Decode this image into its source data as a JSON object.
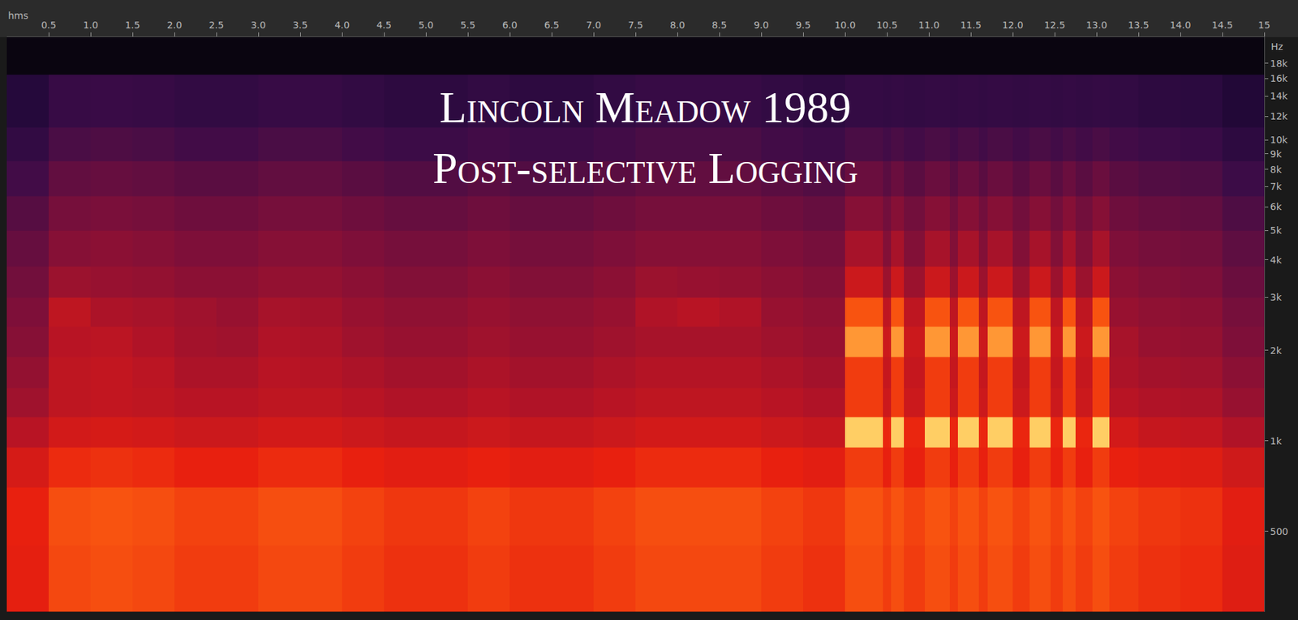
{
  "chart_data": {
    "type": "heatmap",
    "title": "Lincoln Meadow 1989",
    "subtitle": "Post-selective Logging",
    "x_label": "hms",
    "y_label": "Hz",
    "log": "y",
    "grid": false,
    "xlim": [
      0,
      15
    ],
    "ylim": [
      270,
      22000
    ],
    "zlim": [
      0,
      1
    ],
    "xticks": [
      0.5,
      {
        "value": 1,
        "label": "1.0"
      },
      1.5,
      {
        "value": 2,
        "label": "2.0"
      },
      2.5,
      {
        "value": 3,
        "label": "3.0"
      },
      3.5,
      {
        "value": 4,
        "label": "4.0"
      },
      4.5,
      {
        "value": 5,
        "label": "5.0"
      },
      5.5,
      {
        "value": 6,
        "label": "6.0"
      },
      6.5,
      {
        "value": 7,
        "label": "7.0"
      },
      7.5,
      {
        "value": 8,
        "label": "8.0"
      },
      8.5,
      {
        "value": 9,
        "label": "9.0"
      },
      9.5,
      {
        "value": 10,
        "label": "10.0"
      },
      10.5,
      {
        "value": 11,
        "label": "11.0"
      },
      11.5,
      {
        "value": 12,
        "label": "12.0"
      },
      12.5,
      {
        "value": 13,
        "label": "13.0"
      },
      13.5,
      {
        "value": 14,
        "label": "14.0"
      },
      14.5,
      15
    ],
    "yticks": [
      500,
      {
        "value": 1000,
        "label": "1k"
      },
      {
        "value": 2000,
        "label": "2k"
      },
      {
        "value": 3000,
        "label": "3k"
      },
      {
        "value": 4000,
        "label": "4k"
      },
      {
        "value": 5000,
        "label": "5k"
      },
      {
        "value": 6000,
        "label": "6k"
      },
      {
        "value": 7000,
        "label": "7k"
      },
      {
        "value": 8000,
        "label": "8k"
      },
      {
        "value": 9000,
        "label": "9k"
      },
      {
        "value": 10000,
        "label": "10k"
      },
      {
        "value": 12000,
        "label": "12k"
      },
      {
        "value": 14000,
        "label": "14k"
      },
      {
        "value": 16000,
        "label": "16k"
      },
      {
        "value": 18000,
        "label": "18k"
      }
    ],
    "x": [
      0,
      0.5,
      1,
      1.5,
      2,
      2.5,
      3,
      3.5,
      4,
      4.5,
      5,
      5.5,
      6,
      6.5,
      7,
      7.5,
      8,
      8.5,
      9,
      9.5,
      10,
      10.45,
      10.55,
      10.7,
      10.95,
      11.25,
      11.35,
      11.6,
      11.7,
      12,
      12.2,
      12.45,
      12.6,
      12.75,
      12.95,
      13.15,
      13.5,
      14,
      14.5,
      15
    ],
    "y": [
      270,
      450,
      700,
      950,
      1200,
      1500,
      1900,
      2400,
      3000,
      3800,
      5000,
      6500,
      8500,
      11000,
      16500
    ],
    "z": [
      [
        0.74,
        0.82,
        0.83,
        0.82,
        0.8,
        0.8,
        0.82,
        0.82,
        0.8,
        0.78,
        0.78,
        0.8,
        0.78,
        0.78,
        0.8,
        0.82,
        0.82,
        0.82,
        0.8,
        0.78,
        0.83,
        0.8,
        0.83,
        0.8,
        0.83,
        0.8,
        0.83,
        0.8,
        0.83,
        0.8,
        0.83,
        0.8,
        0.83,
        0.8,
        0.83,
        0.8,
        0.78,
        0.77,
        0.72
      ],
      [
        0.75,
        0.83,
        0.84,
        0.83,
        0.81,
        0.81,
        0.83,
        0.83,
        0.81,
        0.79,
        0.79,
        0.81,
        0.79,
        0.79,
        0.81,
        0.83,
        0.83,
        0.83,
        0.81,
        0.79,
        0.84,
        0.81,
        0.84,
        0.81,
        0.84,
        0.81,
        0.84,
        0.81,
        0.84,
        0.81,
        0.84,
        0.81,
        0.84,
        0.81,
        0.84,
        0.81,
        0.79,
        0.78,
        0.73
      ],
      [
        0.69,
        0.77,
        0.78,
        0.77,
        0.75,
        0.75,
        0.77,
        0.77,
        0.75,
        0.73,
        0.73,
        0.75,
        0.73,
        0.73,
        0.75,
        0.77,
        0.77,
        0.77,
        0.75,
        0.73,
        0.8,
        0.75,
        0.8,
        0.75,
        0.8,
        0.75,
        0.8,
        0.75,
        0.8,
        0.75,
        0.8,
        0.75,
        0.8,
        0.75,
        0.8,
        0.75,
        0.73,
        0.72,
        0.67
      ],
      [
        0.6,
        0.68,
        0.69,
        0.68,
        0.66,
        0.66,
        0.68,
        0.68,
        0.66,
        0.64,
        0.64,
        0.66,
        0.64,
        0.64,
        0.66,
        0.68,
        0.68,
        0.68,
        0.66,
        0.64,
        0.97,
        0.76,
        0.97,
        0.76,
        0.97,
        0.76,
        0.97,
        0.76,
        0.97,
        0.76,
        0.97,
        0.76,
        0.97,
        0.76,
        0.97,
        0.68,
        0.64,
        0.63,
        0.58
      ],
      [
        0.54,
        0.62,
        0.63,
        0.62,
        0.6,
        0.6,
        0.62,
        0.62,
        0.6,
        0.58,
        0.58,
        0.6,
        0.58,
        0.58,
        0.6,
        0.62,
        0.62,
        0.62,
        0.6,
        0.58,
        0.8,
        0.66,
        0.8,
        0.66,
        0.8,
        0.66,
        0.8,
        0.66,
        0.8,
        0.66,
        0.8,
        0.66,
        0.8,
        0.66,
        0.8,
        0.6,
        0.58,
        0.57,
        0.52
      ],
      [
        0.51,
        0.62,
        0.63,
        0.61,
        0.57,
        0.57,
        0.6,
        0.59,
        0.57,
        0.55,
        0.55,
        0.57,
        0.55,
        0.55,
        0.57,
        0.59,
        0.59,
        0.59,
        0.57,
        0.55,
        0.8,
        0.64,
        0.8,
        0.64,
        0.8,
        0.64,
        0.8,
        0.64,
        0.8,
        0.64,
        0.8,
        0.64,
        0.8,
        0.64,
        0.8,
        0.57,
        0.55,
        0.54,
        0.49
      ],
      [
        0.48,
        0.6,
        0.61,
        0.58,
        0.55,
        0.54,
        0.58,
        0.57,
        0.54,
        0.52,
        0.52,
        0.54,
        0.52,
        0.52,
        0.54,
        0.56,
        0.56,
        0.56,
        0.54,
        0.52,
        0.92,
        0.66,
        0.92,
        0.66,
        0.92,
        0.66,
        0.92,
        0.66,
        0.92,
        0.66,
        0.92,
        0.66,
        0.92,
        0.66,
        0.92,
        0.56,
        0.52,
        0.51,
        0.46
      ],
      [
        0.46,
        0.62,
        0.57,
        0.56,
        0.54,
        0.52,
        0.56,
        0.55,
        0.52,
        0.5,
        0.5,
        0.52,
        0.5,
        0.5,
        0.52,
        0.58,
        0.6,
        0.58,
        0.52,
        0.5,
        0.84,
        0.62,
        0.84,
        0.62,
        0.84,
        0.62,
        0.84,
        0.62,
        0.84,
        0.62,
        0.84,
        0.62,
        0.84,
        0.62,
        0.84,
        0.52,
        0.5,
        0.49,
        0.44
      ],
      [
        0.43,
        0.53,
        0.52,
        0.51,
        0.49,
        0.49,
        0.51,
        0.51,
        0.49,
        0.47,
        0.47,
        0.49,
        0.47,
        0.47,
        0.49,
        0.53,
        0.52,
        0.51,
        0.49,
        0.47,
        0.66,
        0.53,
        0.66,
        0.53,
        0.66,
        0.53,
        0.66,
        0.53,
        0.66,
        0.53,
        0.66,
        0.53,
        0.66,
        0.53,
        0.66,
        0.49,
        0.47,
        0.46,
        0.41
      ],
      [
        0.4,
        0.48,
        0.49,
        0.48,
        0.46,
        0.46,
        0.48,
        0.48,
        0.46,
        0.44,
        0.44,
        0.46,
        0.44,
        0.44,
        0.46,
        0.48,
        0.48,
        0.48,
        0.46,
        0.44,
        0.56,
        0.47,
        0.56,
        0.47,
        0.56,
        0.47,
        0.56,
        0.47,
        0.56,
        0.47,
        0.56,
        0.47,
        0.56,
        0.47,
        0.56,
        0.46,
        0.44,
        0.43,
        0.38
      ],
      [
        0.36,
        0.44,
        0.45,
        0.44,
        0.42,
        0.42,
        0.44,
        0.44,
        0.42,
        0.4,
        0.4,
        0.42,
        0.4,
        0.4,
        0.42,
        0.44,
        0.44,
        0.44,
        0.42,
        0.4,
        0.48,
        0.43,
        0.48,
        0.43,
        0.48,
        0.43,
        0.48,
        0.43,
        0.48,
        0.43,
        0.48,
        0.43,
        0.48,
        0.43,
        0.48,
        0.42,
        0.4,
        0.39,
        0.34
      ],
      [
        0.31,
        0.39,
        0.4,
        0.39,
        0.37,
        0.37,
        0.39,
        0.39,
        0.37,
        0.35,
        0.35,
        0.37,
        0.35,
        0.35,
        0.37,
        0.39,
        0.39,
        0.39,
        0.37,
        0.35,
        0.41,
        0.37,
        0.41,
        0.37,
        0.41,
        0.37,
        0.41,
        0.37,
        0.41,
        0.37,
        0.41,
        0.37,
        0.41,
        0.37,
        0.41,
        0.37,
        0.35,
        0.34,
        0.29
      ],
      [
        0.25,
        0.33,
        0.34,
        0.33,
        0.31,
        0.31,
        0.33,
        0.33,
        0.31,
        0.29,
        0.29,
        0.31,
        0.29,
        0.29,
        0.31,
        0.33,
        0.33,
        0.33,
        0.31,
        0.29,
        0.33,
        0.31,
        0.33,
        0.31,
        0.33,
        0.31,
        0.33,
        0.31,
        0.33,
        0.31,
        0.33,
        0.31,
        0.33,
        0.31,
        0.33,
        0.31,
        0.29,
        0.28,
        0.23
      ],
      [
        0.19,
        0.27,
        0.28,
        0.27,
        0.25,
        0.25,
        0.27,
        0.27,
        0.25,
        0.23,
        0.23,
        0.25,
        0.23,
        0.23,
        0.25,
        0.27,
        0.27,
        0.27,
        0.25,
        0.23,
        0.26,
        0.25,
        0.26,
        0.25,
        0.26,
        0.25,
        0.26,
        0.25,
        0.26,
        0.25,
        0.26,
        0.25,
        0.26,
        0.25,
        0.26,
        0.25,
        0.23,
        0.22,
        0.17
      ]
    ]
  }
}
